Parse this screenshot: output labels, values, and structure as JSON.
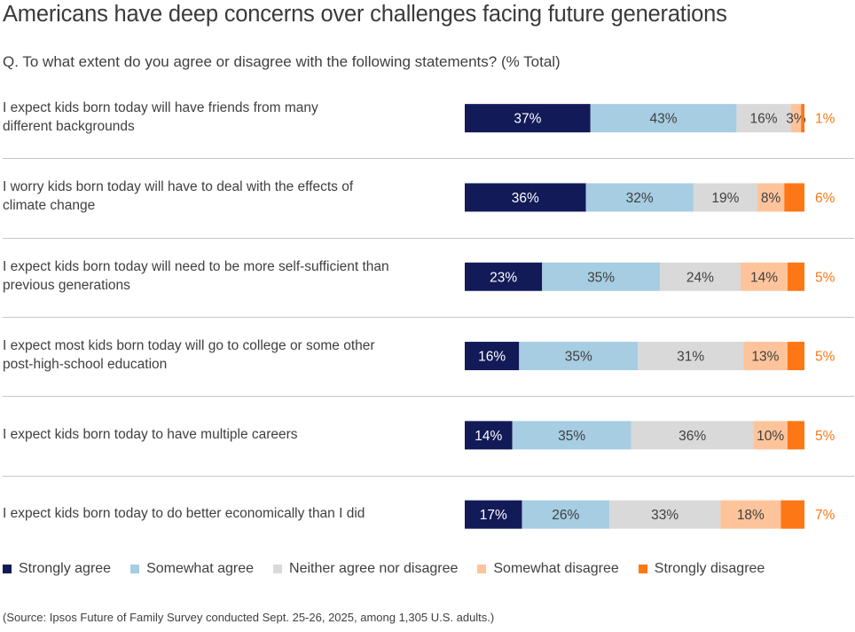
{
  "header": {
    "title": "Americans have deep concerns over challenges facing future generations",
    "question": "Q. To what extent do you agree or disagree with the following statements? (% Total)"
  },
  "footer": {
    "source": "(Source: Ipsos Future of Family Survey conducted Sept. 25-26, 2025, among 1,305 U.S. adults.)"
  },
  "chart_data": {
    "type": "bar",
    "orientation": "horizontal",
    "stacked": true,
    "title": "Americans have deep concerns over challenges facing future generations",
    "subtitle": "Q. To what extent do you agree or disagree with the following statements? (% Total)",
    "xlabel": "",
    "ylabel": "",
    "xlim": [
      0,
      100
    ],
    "unit": "%",
    "grid": false,
    "legend_position": "bottom",
    "categories": [
      "I expect kids born today will have friends from many different backgrounds",
      "I worry kids born today will have to deal with the effects of climate change",
      "I expect kids born today will need to be more self-sufficient than previous generations",
      "I expect most kids born today will go to college or some other post-high-school education",
      "I expect kids born today to have multiple careers",
      "I expect kids born today to do better economically than I did"
    ],
    "category_lines": [
      [
        "I expect kids born today will have friends from many",
        "different backgrounds"
      ],
      [
        "I worry kids born today will have to deal with the effects of",
        "climate change"
      ],
      [
        "I expect kids born today will need to be more self-sufficient than",
        "previous generations"
      ],
      [
        "I expect most kids born today will go to college or some other",
        "post-high-school education"
      ],
      [
        "I expect kids born today to have multiple careers"
      ],
      [
        "I expect kids born today to do better economically than I did"
      ]
    ],
    "series": [
      {
        "name": "Strongly agree",
        "color": "#131a58",
        "label_color": "#ffffff",
        "values": [
          37,
          36,
          23,
          16,
          14,
          17
        ]
      },
      {
        "name": "Somewhat agree",
        "color": "#a6cde2",
        "label_color": "#404040",
        "values": [
          43,
          32,
          35,
          35,
          35,
          26
        ]
      },
      {
        "name": "Neither agree nor disagree",
        "color": "#d9d9d9",
        "label_color": "#404040",
        "values": [
          16,
          19,
          24,
          31,
          36,
          33
        ]
      },
      {
        "name": "Somewhat disagree",
        "color": "#fdc49b",
        "label_color": "#404040",
        "values": [
          3,
          8,
          14,
          13,
          10,
          18
        ]
      },
      {
        "name": "Strongly disagree",
        "color": "#fd7716",
        "label_color": "#fd7716",
        "values": [
          1,
          6,
          5,
          5,
          5,
          7
        ],
        "label_outside": true
      }
    ]
  }
}
